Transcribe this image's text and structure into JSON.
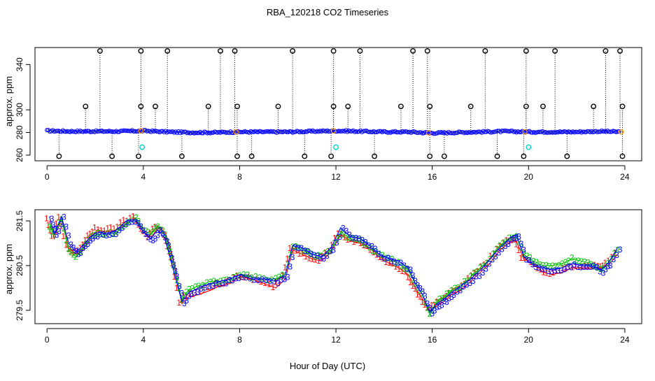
{
  "title": "RBA_120218  CO2 Timeseries",
  "xlabel": "Hour of Day (UTC)",
  "colors": {
    "series1": "#ff0000",
    "series2": "#00c000",
    "series3": "#0000ff",
    "outlier": "#000000",
    "calibration": "#00d0d0",
    "orange": "#ff9900",
    "axis": "#000000"
  },
  "chart_data": [
    {
      "type": "scatter",
      "title": "",
      "xlabel": "",
      "ylabel": "approx. ppm",
      "xlim": [
        -0.5,
        24.7
      ],
      "ylim": [
        255,
        355
      ],
      "xticks": [
        0,
        4,
        8,
        12,
        16,
        20,
        24
      ],
      "yticks": [
        260,
        280,
        300,
        340
      ],
      "baseline": [
        [
          0,
          281.5
        ],
        [
          1,
          281
        ],
        [
          2,
          281
        ],
        [
          3,
          281
        ],
        [
          4,
          281.5
        ],
        [
          5,
          280.5
        ],
        [
          6,
          280
        ],
        [
          7,
          280
        ],
        [
          8,
          280.5
        ],
        [
          9,
          280.5
        ],
        [
          10,
          280.5
        ],
        [
          11,
          281
        ],
        [
          12,
          281.5
        ],
        [
          13,
          281
        ],
        [
          14,
          280.5
        ],
        [
          15,
          280.5
        ],
        [
          16,
          279.5
        ],
        [
          17,
          280
        ],
        [
          18,
          280.5
        ],
        [
          19,
          281
        ],
        [
          20,
          280.5
        ],
        [
          21,
          280.5
        ],
        [
          22,
          280.5
        ],
        [
          23,
          281
        ],
        [
          23.8,
          280.5
        ]
      ],
      "outliers_high": [
        2.2,
        3.9,
        5.0,
        7.2,
        7.8,
        10.2,
        11.9,
        13.0,
        15.2,
        15.8,
        18.2,
        19.9,
        21.1,
        23.2,
        23.8
      ],
      "outlier_high_value": 352,
      "outliers_mid": [
        1.6,
        3.9,
        4.5,
        6.7,
        7.9,
        9.6,
        11.9,
        12.5,
        14.7,
        15.9,
        17.6,
        19.9,
        20.6,
        22.7,
        23.9
      ],
      "outlier_mid_value": 303,
      "outliers_low": [
        0.5,
        2.7,
        3.8,
        5.6,
        7.9,
        8.5,
        10.7,
        11.8,
        13.6,
        15.9,
        16.5,
        18.7,
        19.8,
        21.6,
        23.9
      ],
      "outlier_low_value": 259,
      "calibration_points": [
        [
          3.95,
          267
        ],
        [
          12.0,
          267
        ],
        [
          20.0,
          267
        ]
      ]
    },
    {
      "type": "line",
      "title": "",
      "xlabel": "Hour of Day (UTC)",
      "ylabel": "approx. ppm",
      "xlim": [
        -0.5,
        24.7
      ],
      "ylim": [
        279.2,
        281.75
      ],
      "xticks": [
        0,
        4,
        8,
        12,
        16,
        20,
        24
      ],
      "yticks": [
        279.5,
        280.5,
        281.5
      ],
      "series": [
        {
          "name": "1",
          "offset": -0.12,
          "label_offset": 0.04,
          "values": [
            [
              0.1,
              281.5
            ],
            [
              0.3,
              281.1
            ],
            [
              0.6,
              281.55
            ],
            [
              0.9,
              280.9
            ],
            [
              1.2,
              280.75
            ],
            [
              1.5,
              280.85
            ],
            [
              1.8,
              281.1
            ],
            [
              2.1,
              281.3
            ],
            [
              2.5,
              281.25
            ],
            [
              2.9,
              281.3
            ],
            [
              3.3,
              281.45
            ],
            [
              3.7,
              281.55
            ],
            [
              4.0,
              281.3
            ],
            [
              4.3,
              281.1
            ],
            [
              4.6,
              281.35
            ],
            [
              4.9,
              281.25
            ],
            [
              5.1,
              280.9
            ],
            [
              5.3,
              280.5
            ],
            [
              5.6,
              279.65
            ],
            [
              5.9,
              279.8
            ],
            [
              6.3,
              279.85
            ],
            [
              6.8,
              279.95
            ],
            [
              7.2,
              280.05
            ],
            [
              7.6,
              280.1
            ],
            [
              8.0,
              280.25
            ],
            [
              8.5,
              280.2
            ],
            [
              9.0,
              280.1
            ],
            [
              9.5,
              280.0
            ],
            [
              9.9,
              280.2
            ],
            [
              10.2,
              280.85
            ],
            [
              10.6,
              280.75
            ],
            [
              11.0,
              280.65
            ],
            [
              11.4,
              280.6
            ],
            [
              11.8,
              280.8
            ],
            [
              12.2,
              281.2
            ],
            [
              12.6,
              281.05
            ],
            [
              13.0,
              281.0
            ],
            [
              13.4,
              280.9
            ],
            [
              13.8,
              280.7
            ],
            [
              14.2,
              280.55
            ],
            [
              14.6,
              280.45
            ],
            [
              15.0,
              280.3
            ],
            [
              15.3,
              280.0
            ],
            [
              15.6,
              279.75
            ],
            [
              15.9,
              279.5
            ],
            [
              16.2,
              279.6
            ],
            [
              16.5,
              279.7
            ],
            [
              16.8,
              279.85
            ],
            [
              17.2,
              279.95
            ],
            [
              17.6,
              280.15
            ],
            [
              18.0,
              280.35
            ],
            [
              18.4,
              280.55
            ],
            [
              18.8,
              280.85
            ],
            [
              19.2,
              281.0
            ],
            [
              19.5,
              281.05
            ],
            [
              19.8,
              280.65
            ],
            [
              20.2,
              280.55
            ],
            [
              20.6,
              280.35
            ],
            [
              21.0,
              280.3
            ],
            [
              21.4,
              280.35
            ],
            [
              21.8,
              280.45
            ],
            [
              22.2,
              280.45
            ],
            [
              22.6,
              280.45
            ],
            [
              23.0,
              280.45
            ],
            [
              23.3,
              280.5
            ],
            [
              23.7,
              280.75
            ]
          ]
        },
        {
          "name": "2",
          "offset": 0.0,
          "label_offset": 0.0,
          "values": [
            [
              0.1,
              281.4
            ],
            [
              0.3,
              281.2
            ],
            [
              0.6,
              281.55
            ],
            [
              0.9,
              280.85
            ],
            [
              1.2,
              280.7
            ],
            [
              1.5,
              280.9
            ],
            [
              1.8,
              281.15
            ],
            [
              2.1,
              281.2
            ],
            [
              2.5,
              281.2
            ],
            [
              2.9,
              281.25
            ],
            [
              3.3,
              281.45
            ],
            [
              3.7,
              281.55
            ],
            [
              4.0,
              281.3
            ],
            [
              4.3,
              281.2
            ],
            [
              4.6,
              281.4
            ],
            [
              4.9,
              281.2
            ],
            [
              5.1,
              280.8
            ],
            [
              5.3,
              280.4
            ],
            [
              5.6,
              279.75
            ],
            [
              5.9,
              279.95
            ],
            [
              6.3,
              280.05
            ],
            [
              6.8,
              280.15
            ],
            [
              7.2,
              280.15
            ],
            [
              7.6,
              280.2
            ],
            [
              8.0,
              280.3
            ],
            [
              8.5,
              280.25
            ],
            [
              9.0,
              280.2
            ],
            [
              9.5,
              280.2
            ],
            [
              9.9,
              280.3
            ],
            [
              10.2,
              280.95
            ],
            [
              10.6,
              280.85
            ],
            [
              11.0,
              280.75
            ],
            [
              11.4,
              280.7
            ],
            [
              11.8,
              280.85
            ],
            [
              12.2,
              281.25
            ],
            [
              12.6,
              281.1
            ],
            [
              13.0,
              281.05
            ],
            [
              13.4,
              280.9
            ],
            [
              13.8,
              280.75
            ],
            [
              14.2,
              280.65
            ],
            [
              14.6,
              280.55
            ],
            [
              15.0,
              280.4
            ],
            [
              15.3,
              280.1
            ],
            [
              15.6,
              279.85
            ],
            [
              15.9,
              279.4
            ],
            [
              16.2,
              279.7
            ],
            [
              16.5,
              279.8
            ],
            [
              16.8,
              279.95
            ],
            [
              17.2,
              280.05
            ],
            [
              17.6,
              280.25
            ],
            [
              18.0,
              280.45
            ],
            [
              18.4,
              280.65
            ],
            [
              18.8,
              280.95
            ],
            [
              19.2,
              281.1
            ],
            [
              19.5,
              281.15
            ],
            [
              19.8,
              280.75
            ],
            [
              20.2,
              280.6
            ],
            [
              20.6,
              280.5
            ],
            [
              21.0,
              280.5
            ],
            [
              21.4,
              280.55
            ],
            [
              21.8,
              280.65
            ],
            [
              22.2,
              280.6
            ],
            [
              22.6,
              280.55
            ],
            [
              23.0,
              280.4
            ],
            [
              23.3,
              280.55
            ],
            [
              23.7,
              280.85
            ]
          ]
        },
        {
          "name": "3",
          "offset": 0.1,
          "label_offset": -0.04,
          "values": [
            [
              0.1,
              281.6
            ],
            [
              0.3,
              281.2
            ],
            [
              0.6,
              281.6
            ],
            [
              0.9,
              281.0
            ],
            [
              1.2,
              280.8
            ],
            [
              1.5,
              280.95
            ],
            [
              1.8,
              281.15
            ],
            [
              2.1,
              281.25
            ],
            [
              2.5,
              281.2
            ],
            [
              2.9,
              281.3
            ],
            [
              3.3,
              281.5
            ],
            [
              3.7,
              281.5
            ],
            [
              4.0,
              281.25
            ],
            [
              4.3,
              281.1
            ],
            [
              4.6,
              281.3
            ],
            [
              4.9,
              281.1
            ],
            [
              5.1,
              280.7
            ],
            [
              5.3,
              280.3
            ],
            [
              5.6,
              279.7
            ],
            [
              5.9,
              279.9
            ],
            [
              6.3,
              280.0
            ],
            [
              6.8,
              280.1
            ],
            [
              7.2,
              280.15
            ],
            [
              7.6,
              280.2
            ],
            [
              8.0,
              280.3
            ],
            [
              8.5,
              280.2
            ],
            [
              9.0,
              280.2
            ],
            [
              9.5,
              280.15
            ],
            [
              9.9,
              280.3
            ],
            [
              10.2,
              280.95
            ],
            [
              10.6,
              280.9
            ],
            [
              11.0,
              280.75
            ],
            [
              11.4,
              280.7
            ],
            [
              11.8,
              280.9
            ],
            [
              12.2,
              281.35
            ],
            [
              12.6,
              281.15
            ],
            [
              13.0,
              281.1
            ],
            [
              13.4,
              280.95
            ],
            [
              13.8,
              280.75
            ],
            [
              14.2,
              280.65
            ],
            [
              14.6,
              280.6
            ],
            [
              15.0,
              280.45
            ],
            [
              15.3,
              280.1
            ],
            [
              15.6,
              279.85
            ],
            [
              15.9,
              279.45
            ],
            [
              16.2,
              279.65
            ],
            [
              16.5,
              279.75
            ],
            [
              16.8,
              279.9
            ],
            [
              17.2,
              280.05
            ],
            [
              17.6,
              280.2
            ],
            [
              18.0,
              280.4
            ],
            [
              18.4,
              280.65
            ],
            [
              18.8,
              280.9
            ],
            [
              19.2,
              281.1
            ],
            [
              19.5,
              281.2
            ],
            [
              19.8,
              280.7
            ],
            [
              20.2,
              280.5
            ],
            [
              20.6,
              280.45
            ],
            [
              21.0,
              280.4
            ],
            [
              21.4,
              280.45
            ],
            [
              21.8,
              280.55
            ],
            [
              22.2,
              280.5
            ],
            [
              22.6,
              280.5
            ],
            [
              23.0,
              280.4
            ],
            [
              23.3,
              280.55
            ],
            [
              23.7,
              280.9
            ]
          ]
        }
      ]
    }
  ]
}
